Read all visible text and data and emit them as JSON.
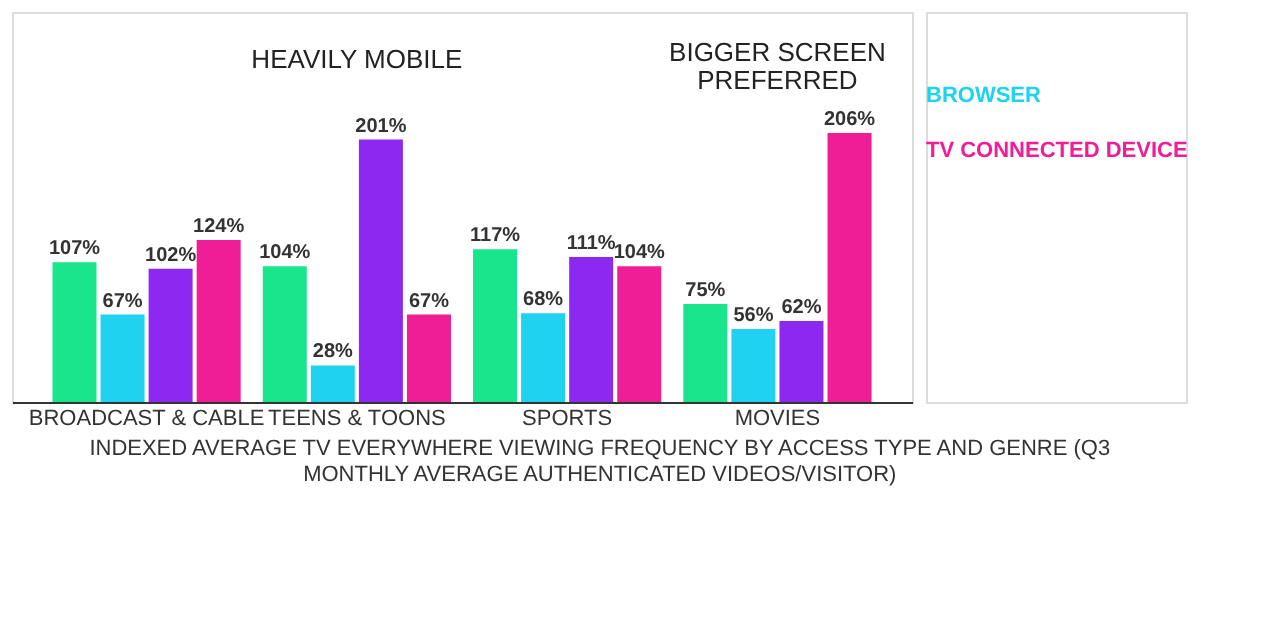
{
  "chart_data": {
    "type": "bar",
    "title": "INDEXED AVERAGE TV EVERYWHERE VIEWING FREQUENCY BY ACCESS TYPE AND GENRE (Q3 MONTHLY AVERAGE AUTHENTICATED VIDEOS/VISITOR)",
    "categories": [
      "BROADCAST & CABLE",
      "TEENS & TOONS",
      "SPORTS",
      "MOVIES"
    ],
    "series": [
      {
        "color": "#19e68c",
        "values": [
          107,
          104,
          117,
          75
        ],
        "value_labels": [
          "107%",
          "104%",
          "117%",
          "75%"
        ]
      },
      {
        "name": "BROWSER",
        "color": "#1ed2f0",
        "values": [
          67,
          28,
          68,
          56
        ],
        "value_labels": [
          "67%",
          "28%",
          "68%",
          "56%"
        ]
      },
      {
        "color": "#8c28f0",
        "values": [
          102,
          201,
          111,
          62
        ],
        "value_labels": [
          "102%",
          "201%",
          "111%",
          "62%"
        ]
      },
      {
        "name": "TV CONNECTED DEVICE",
        "color": "#f01e96",
        "values": [
          124,
          67,
          104,
          206
        ],
        "value_labels": [
          "124%",
          "67%",
          "104%",
          "206%"
        ]
      }
    ],
    "annotations": [
      "HEAVILY MOBILE",
      "BIGGER SCREEN PREFERRED"
    ],
    "legend": "right",
    "grid": false
  }
}
